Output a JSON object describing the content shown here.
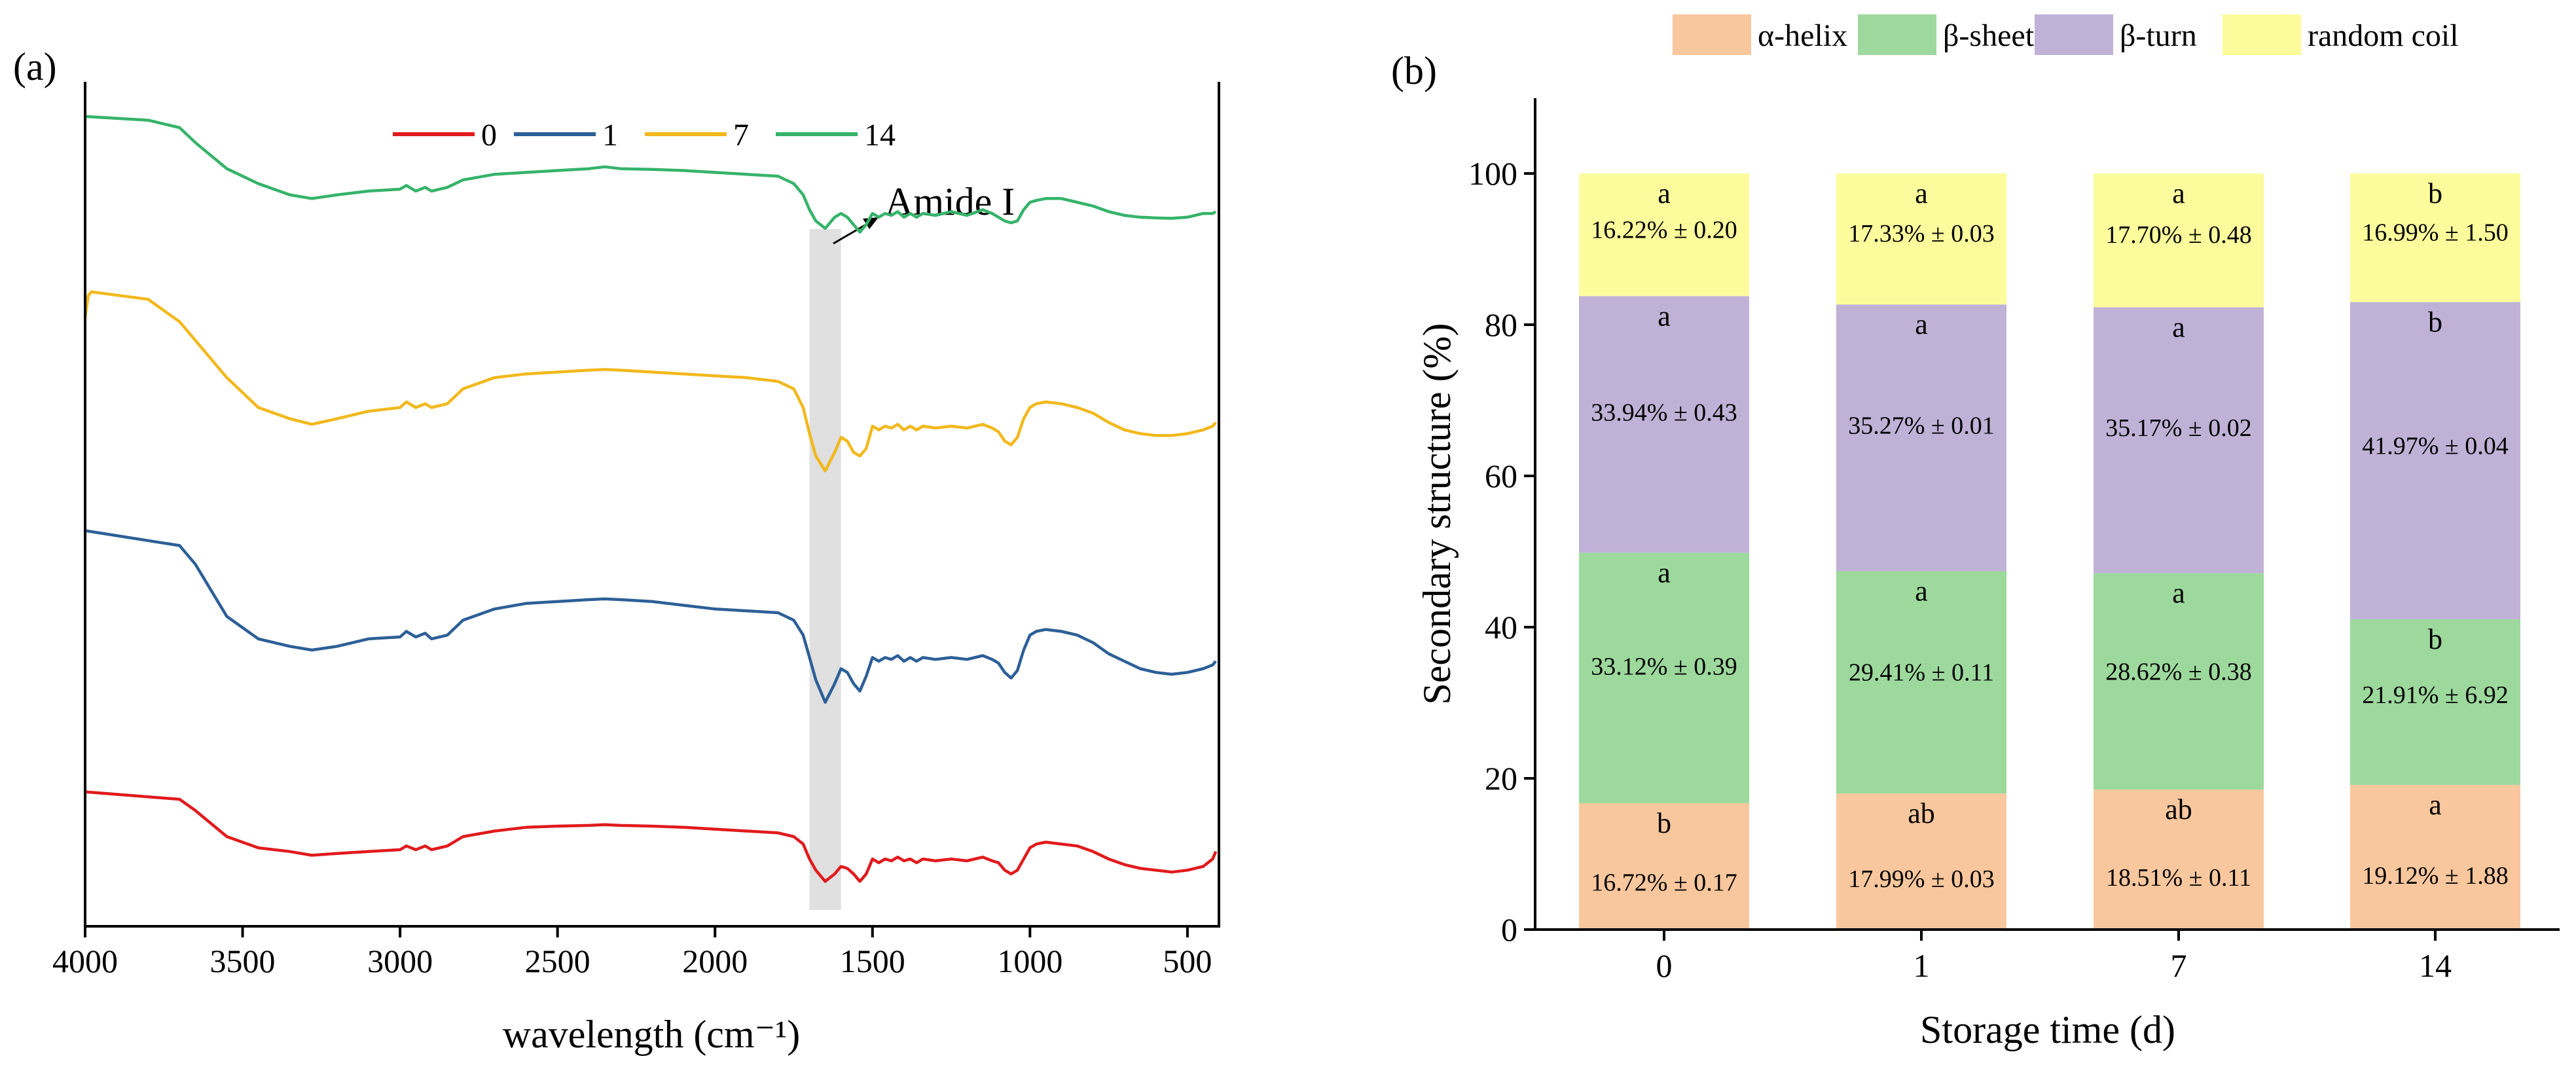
{
  "chart_data": [
    {
      "panel": "(a)",
      "type": "line",
      "title": "",
      "xlabel": "wavelength (cm⁻¹)",
      "ylabel": "",
      "xlim": [
        4000,
        400
      ],
      "xticks": [
        4000,
        3500,
        3000,
        2500,
        2000,
        1500,
        1000,
        500
      ],
      "grid": false,
      "legend_position": "top-center",
      "annotation": {
        "text": "Amide I",
        "band": [
          1700,
          1600
        ]
      },
      "series": [
        {
          "name": "0",
          "color": "#e11a1c",
          "offset": 0,
          "x": [
            4000,
            3700,
            3650,
            3550,
            3450,
            3350,
            3280,
            3200,
            3100,
            3000,
            2980,
            2950,
            2920,
            2900,
            2850,
            2800,
            2700,
            2600,
            2500,
            2400,
            2350,
            2300,
            2200,
            2100,
            2000,
            1900,
            1800,
            1750,
            1720,
            1700,
            1680,
            1650,
            1620,
            1600,
            1580,
            1560,
            1540,
            1520,
            1500,
            1480,
            1460,
            1440,
            1420,
            1400,
            1380,
            1360,
            1340,
            1300,
            1250,
            1200,
            1150,
            1120,
            1100,
            1080,
            1060,
            1040,
            1020,
            1000,
            980,
            950,
            900,
            850,
            800,
            750,
            700,
            650,
            600,
            550,
            500,
            450,
            420,
            410
          ],
          "y": [
            0.22,
            0.2,
            0.17,
            0.1,
            0.07,
            0.06,
            0.05,
            0.055,
            0.06,
            0.065,
            0.075,
            0.065,
            0.075,
            0.065,
            0.075,
            0.1,
            0.115,
            0.125,
            0.128,
            0.13,
            0.132,
            0.13,
            0.128,
            0.125,
            0.12,
            0.115,
            0.11,
            0.1,
            0.08,
            0.04,
            0.01,
            -0.02,
            0.0,
            0.02,
            0.015,
            0.0,
            -0.02,
            0.0,
            0.04,
            0.03,
            0.04,
            0.035,
            0.045,
            0.035,
            0.04,
            0.03,
            0.04,
            0.035,
            0.04,
            0.035,
            0.045,
            0.035,
            0.03,
            0.01,
            0.0,
            0.01,
            0.04,
            0.07,
            0.08,
            0.085,
            0.08,
            0.075,
            0.06,
            0.04,
            0.025,
            0.015,
            0.01,
            0.005,
            0.01,
            0.02,
            0.04,
            0.06
          ]
        },
        {
          "name": "1",
          "color": "#2c5f97",
          "offset": 0.55,
          "x": [
            4000,
            3700,
            3650,
            3550,
            3450,
            3350,
            3280,
            3200,
            3100,
            3000,
            2980,
            2950,
            2920,
            2900,
            2850,
            2800,
            2700,
            2600,
            2500,
            2400,
            2350,
            2300,
            2200,
            2100,
            2000,
            1900,
            1800,
            1750,
            1720,
            1700,
            1680,
            1650,
            1620,
            1600,
            1580,
            1560,
            1540,
            1520,
            1500,
            1480,
            1460,
            1440,
            1420,
            1400,
            1380,
            1360,
            1340,
            1300,
            1250,
            1200,
            1150,
            1120,
            1100,
            1080,
            1060,
            1040,
            1020,
            1000,
            980,
            950,
            900,
            850,
            800,
            750,
            700,
            650,
            600,
            550,
            500,
            450,
            420,
            410
          ],
          "y": [
            0.37,
            0.33,
            0.28,
            0.14,
            0.08,
            0.06,
            0.05,
            0.06,
            0.08,
            0.085,
            0.1,
            0.085,
            0.095,
            0.08,
            0.09,
            0.13,
            0.16,
            0.175,
            0.18,
            0.185,
            0.187,
            0.185,
            0.18,
            0.17,
            0.16,
            0.155,
            0.15,
            0.13,
            0.09,
            0.03,
            -0.03,
            -0.09,
            -0.04,
            0.0,
            -0.01,
            -0.04,
            -0.06,
            -0.02,
            0.03,
            0.02,
            0.03,
            0.025,
            0.035,
            0.02,
            0.03,
            0.02,
            0.03,
            0.025,
            0.03,
            0.025,
            0.035,
            0.025,
            0.015,
            -0.01,
            -0.025,
            -0.005,
            0.05,
            0.09,
            0.1,
            0.105,
            0.1,
            0.09,
            0.07,
            0.04,
            0.02,
            0.0,
            -0.01,
            -0.015,
            -0.01,
            0.0,
            0.01,
            0.02
          ]
        },
        {
          "name": "7",
          "color": "#f2b81c",
          "offset": 1.15,
          "x": [
            4000,
            3990,
            3980,
            3800,
            3700,
            3650,
            3550,
            3450,
            3350,
            3280,
            3200,
            3100,
            3000,
            2980,
            2950,
            2920,
            2900,
            2850,
            2800,
            2700,
            2600,
            2500,
            2400,
            2350,
            2300,
            2200,
            2100,
            2000,
            1900,
            1800,
            1750,
            1720,
            1700,
            1680,
            1650,
            1620,
            1600,
            1580,
            1560,
            1540,
            1520,
            1500,
            1480,
            1460,
            1440,
            1420,
            1400,
            1380,
            1360,
            1340,
            1300,
            1250,
            1200,
            1150,
            1120,
            1100,
            1080,
            1060,
            1040,
            1020,
            1000,
            980,
            950,
            900,
            850,
            800,
            750,
            700,
            650,
            600,
            550,
            500,
            450,
            420,
            410
          ],
          "y": [
            0.34,
            0.4,
            0.41,
            0.39,
            0.33,
            0.28,
            0.18,
            0.1,
            0.07,
            0.055,
            0.07,
            0.09,
            0.1,
            0.115,
            0.1,
            0.11,
            0.1,
            0.11,
            0.15,
            0.18,
            0.19,
            0.195,
            0.2,
            0.202,
            0.2,
            0.195,
            0.19,
            0.185,
            0.18,
            0.17,
            0.15,
            0.1,
            0.03,
            -0.03,
            -0.07,
            -0.02,
            0.02,
            0.01,
            -0.02,
            -0.03,
            -0.01,
            0.05,
            0.04,
            0.05,
            0.045,
            0.055,
            0.04,
            0.05,
            0.04,
            0.05,
            0.045,
            0.05,
            0.045,
            0.055,
            0.045,
            0.035,
            0.01,
            0.0,
            0.02,
            0.07,
            0.1,
            0.11,
            0.115,
            0.11,
            0.1,
            0.085,
            0.06,
            0.04,
            0.03,
            0.025,
            0.025,
            0.03,
            0.04,
            0.05,
            0.06
          ]
        },
        {
          "name": "14",
          "color": "#35b36a",
          "offset": 1.72,
          "x": [
            4000,
            3800,
            3700,
            3650,
            3550,
            3450,
            3350,
            3280,
            3200,
            3100,
            3000,
            2980,
            2950,
            2920,
            2900,
            2850,
            2800,
            2700,
            2600,
            2500,
            2400,
            2350,
            2300,
            2200,
            2100,
            2000,
            1900,
            1800,
            1750,
            1720,
            1700,
            1680,
            1650,
            1620,
            1600,
            1580,
            1560,
            1540,
            1520,
            1500,
            1480,
            1460,
            1440,
            1420,
            1400,
            1380,
            1360,
            1340,
            1300,
            1250,
            1200,
            1150,
            1120,
            1100,
            1080,
            1060,
            1040,
            1020,
            1000,
            980,
            950,
            900,
            850,
            800,
            750,
            700,
            650,
            600,
            550,
            500,
            450,
            420,
            410
          ],
          "y": [
            0.31,
            0.3,
            0.28,
            0.24,
            0.17,
            0.13,
            0.1,
            0.09,
            0.1,
            0.11,
            0.115,
            0.125,
            0.11,
            0.12,
            0.11,
            0.12,
            0.14,
            0.155,
            0.16,
            0.165,
            0.17,
            0.175,
            0.17,
            0.168,
            0.165,
            0.16,
            0.155,
            0.15,
            0.13,
            0.1,
            0.06,
            0.03,
            0.01,
            0.04,
            0.05,
            0.04,
            0.02,
            0.0,
            0.02,
            0.05,
            0.04,
            0.05,
            0.045,
            0.055,
            0.04,
            0.05,
            0.04,
            0.05,
            0.045,
            0.055,
            0.045,
            0.06,
            0.05,
            0.04,
            0.03,
            0.025,
            0.03,
            0.06,
            0.08,
            0.085,
            0.09,
            0.09,
            0.08,
            0.07,
            0.055,
            0.045,
            0.04,
            0.038,
            0.037,
            0.04,
            0.05,
            0.05,
            0.055
          ]
        }
      ]
    },
    {
      "panel": "(b)",
      "type": "bar",
      "stacked": true,
      "title": "",
      "xlabel": "Storage time (d)",
      "ylabel": "Secondary structure (%)",
      "ylim": [
        0,
        110
      ],
      "yticks": [
        0,
        20,
        40,
        60,
        80,
        100
      ],
      "categories": [
        "0",
        "1",
        "7",
        "14"
      ],
      "grid": false,
      "legend_position": "top",
      "series": [
        {
          "name": "α-helix",
          "color": "#f9c79d",
          "values": [
            16.72,
            17.99,
            18.51,
            19.12
          ],
          "labels": [
            "16.72% ± 0.17",
            "17.99% ± 0.03",
            "18.51% ± 0.11",
            "19.12% ± 1.88"
          ],
          "letters": [
            "b",
            "ab",
            "ab",
            "a"
          ]
        },
        {
          "name": "β-sheet",
          "color": "#9dd99d",
          "values": [
            33.12,
            29.41,
            28.62,
            21.91
          ],
          "labels": [
            "33.12% ± 0.39",
            "29.41% ± 0.11",
            "28.62% ± 0.38",
            "21.91% ± 6.92"
          ],
          "letters": [
            "a",
            "a",
            "a",
            "b"
          ]
        },
        {
          "name": "β-turn",
          "color": "#c0b2d7",
          "values": [
            33.94,
            35.27,
            35.17,
            41.97
          ],
          "labels": [
            "33.94% ± 0.43",
            "35.27% ± 0.01",
            "35.17% ± 0.02",
            "41.97% ± 0.04"
          ],
          "letters": [
            "a",
            "a",
            "a",
            "b"
          ]
        },
        {
          "name": "random coil",
          "color": "#fcfc9c",
          "values": [
            16.22,
            17.33,
            17.7,
            16.99
          ],
          "labels": [
            "16.22% ± 0.20",
            "17.33% ± 0.03",
            "17.70% ± 0.48",
            "16.99% ± 1.50"
          ],
          "letters": [
            "a",
            "a",
            "a",
            "b"
          ]
        }
      ]
    }
  ]
}
